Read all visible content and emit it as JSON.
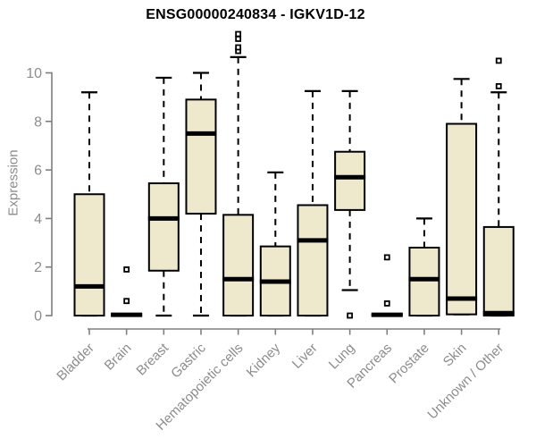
{
  "chart_data": {
    "type": "boxplot",
    "title": "ENSG00000240834 - IGKV1D-12",
    "xlabel": "",
    "ylabel": "Expression",
    "ylim": [
      0,
      10
    ],
    "yticks": [
      0,
      2,
      4,
      6,
      8,
      10
    ],
    "grid": false,
    "legend": "none",
    "categories": [
      "Bladder",
      "Brain",
      "Breast",
      "Gastric",
      "Hematopoietic cells",
      "Kidney",
      "Liver",
      "Lung",
      "Pancreas",
      "Prostate",
      "Skin",
      "Unknown / Other"
    ],
    "boxes": [
      {
        "category": "Bladder",
        "whisker_low": 0,
        "q1": 0,
        "median": 1.2,
        "q3": 5.0,
        "whisker_high": 9.2,
        "outliers": []
      },
      {
        "category": "Brain",
        "whisker_low": 0,
        "q1": 0,
        "median": 0.03,
        "q3": 0.06,
        "whisker_high": 0.06,
        "outliers": [
          0.6,
          1.9
        ]
      },
      {
        "category": "Breast",
        "whisker_low": 0,
        "q1": 1.85,
        "median": 4.0,
        "q3": 5.45,
        "whisker_high": 9.8,
        "outliers": []
      },
      {
        "category": "Gastric",
        "whisker_low": 0,
        "q1": 4.2,
        "median": 7.5,
        "q3": 8.9,
        "whisker_high": 10.0,
        "outliers": []
      },
      {
        "category": "Hematopoietic cells",
        "whisker_low": 0,
        "q1": 0,
        "median": 1.5,
        "q3": 4.15,
        "whisker_high": 10.65,
        "outliers": [
          10.9,
          11.05,
          11.4,
          11.6
        ]
      },
      {
        "category": "Kidney",
        "whisker_low": 0,
        "q1": 0,
        "median": 1.4,
        "q3": 2.85,
        "whisker_high": 5.9,
        "outliers": []
      },
      {
        "category": "Liver",
        "whisker_low": 0,
        "q1": 0,
        "median": 3.1,
        "q3": 4.55,
        "whisker_high": 9.25,
        "outliers": []
      },
      {
        "category": "Lung",
        "whisker_low": 1.05,
        "q1": 4.35,
        "median": 5.7,
        "q3": 6.75,
        "whisker_high": 9.25,
        "outliers": [
          0
        ]
      },
      {
        "category": "Pancreas",
        "whisker_low": 0,
        "q1": 0,
        "median": 0.03,
        "q3": 0.06,
        "whisker_high": 0.06,
        "outliers": [
          0.5,
          2.4
        ]
      },
      {
        "category": "Prostate",
        "whisker_low": 0,
        "q1": 0,
        "median": 1.5,
        "q3": 2.8,
        "whisker_high": 4.0,
        "outliers": []
      },
      {
        "category": "Skin",
        "whisker_low": 0.05,
        "q1": 0.05,
        "median": 0.7,
        "q3": 7.9,
        "whisker_high": 9.75,
        "outliers": []
      },
      {
        "category": "Unknown / Other",
        "whisker_low": 0,
        "q1": 0,
        "median": 0.1,
        "q3": 3.65,
        "whisker_high": 9.2,
        "outliers": [
          9.45,
          10.5
        ]
      }
    ],
    "colors": {
      "box_fill": "#EEE8CD",
      "box_border": "#000000",
      "median": "#000000",
      "whisker": "#000000",
      "outlier": "#000000",
      "axis_line": "#7f7f7f",
      "axis_text": "#8c8c8c",
      "title": "#000000",
      "background": "#FFFFFF"
    }
  }
}
